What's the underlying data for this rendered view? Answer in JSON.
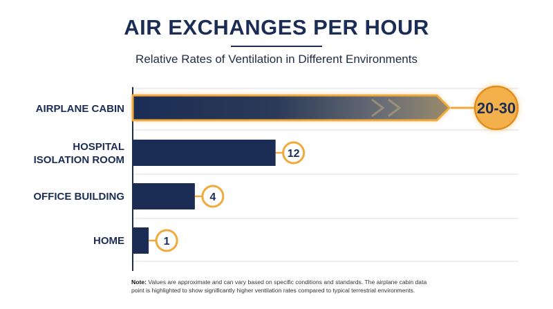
{
  "chart_data": {
    "type": "bar",
    "orientation": "horizontal",
    "title": "AIR EXCHANGES PER HOUR",
    "subtitle": "Relative Rates of Ventilation in Different Environments",
    "categories": [
      "AIRPLANE CABIN",
      "HOSPITAL\nISOLATION ROOM",
      "OFFICE BUILDING",
      "HOME"
    ],
    "values": [
      25,
      12,
      4,
      1
    ],
    "data_labels": [
      "20-30",
      "12",
      "4",
      "1"
    ],
    "ranges": [
      [
        20,
        30
      ],
      null,
      null,
      null
    ],
    "highlighted": [
      true,
      false,
      false,
      false
    ],
    "xlim": [
      0,
      30
    ],
    "grid": true,
    "legend": "none"
  },
  "footnote": {
    "label": "Note:",
    "text": " Values are approximate and can vary based on specific conditions and standards. The airplane cabin data point is highlighted to show significantly higher ventilation rates compared to typical terrestrial environments."
  },
  "colors": {
    "bar": "#1b2d55",
    "highlight": "#f2a93b",
    "badge_fill": "#f4b04a",
    "grid": "#dcdcdc",
    "axis": "#1b2d55"
  }
}
